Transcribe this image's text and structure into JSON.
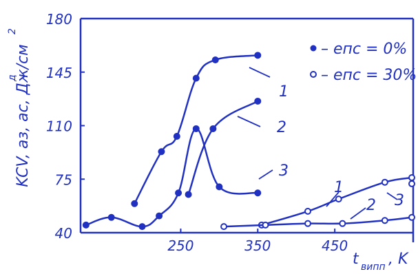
{
  "chart_data": {
    "type": "line",
    "color": "#2030c0",
    "ylabel": "KCV, aз, aс, Дж/см",
    "ylabel_exp": "2",
    "ylabel_sup": "д",
    "xlabel_main": "t",
    "xlabel_sub": "випп",
    "xlabel_unit": ", K",
    "xlim": [
      120,
      550
    ],
    "ylim": [
      40,
      180
    ],
    "xticks": [
      250,
      350,
      450
    ],
    "yticks": [
      40,
      75,
      110,
      145,
      180
    ],
    "legend": [
      {
        "marker": "filled",
        "label": "– eпс = 0%"
      },
      {
        "marker": "open",
        "label": "– eпс = 30%"
      }
    ],
    "series": [
      {
        "marker": "filled",
        "curve_label": "1",
        "x": [
          190,
          225,
          245,
          270,
          295,
          350
        ],
        "y": [
          59,
          93,
          103,
          141,
          153,
          156
        ]
      },
      {
        "marker": "filled",
        "curve_label": "2",
        "x": [
          260,
          292,
          350
        ],
        "y": [
          65,
          108,
          126
        ]
      },
      {
        "marker": "filled",
        "curve_label": "3",
        "x": [
          127,
          160,
          200,
          222,
          247,
          270,
          300,
          350
        ],
        "y": [
          45,
          50,
          44,
          51,
          66,
          108,
          70,
          66
        ]
      },
      {
        "marker": "open",
        "curve_label": "1",
        "x": [
          355,
          415,
          455,
          515,
          550
        ],
        "y": [
          45,
          54,
          62,
          73,
          76
        ]
      },
      {
        "marker": "open",
        "curve_label": "2",
        "x": [
          306,
          360,
          415,
          460,
          515,
          550
        ],
        "y": [
          44,
          45,
          46,
          46,
          48,
          50
        ]
      },
      {
        "marker": "open",
        "curve_label": "3",
        "x": [
          550
        ],
        "y": [
          72
        ]
      }
    ]
  }
}
